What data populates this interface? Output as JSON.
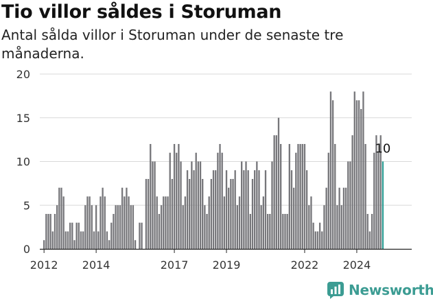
{
  "header": {
    "title": "Tio villor såldes i Storuman",
    "subtitle": "Antal sålda villor i Storuman under de senaste tre månaderna."
  },
  "brand": {
    "name": "Newsworthy",
    "color": "#3c9c93"
  },
  "chart_data": {
    "type": "bar",
    "title": "Tio villor såldes i Storuman",
    "subtitle": "Antal sålda villor i Storuman under de senaste tre månaderna.",
    "xlabel": "",
    "ylabel": "",
    "ylim": [
      0,
      20
    ],
    "yticks": [
      0,
      5,
      10,
      15,
      20
    ],
    "grid": true,
    "legend": "none",
    "bar_color": "#76767a",
    "highlight_color": "#2c9c93",
    "highlight_label": "10",
    "x_start": "2011-12",
    "x_ticks": [
      {
        "label": "2012",
        "index": 1
      },
      {
        "label": "2014",
        "index": 25
      },
      {
        "label": "2017",
        "index": 61
      },
      {
        "label": "2019",
        "index": 85
      },
      {
        "label": "2022",
        "index": 121
      },
      {
        "label": "2024",
        "index": 145
      }
    ],
    "values": [
      0,
      1,
      4,
      4,
      4,
      2,
      4,
      5,
      7,
      7,
      6,
      2,
      2,
      3,
      3,
      1,
      3,
      3,
      2,
      2,
      5,
      6,
      6,
      5,
      2,
      5,
      2,
      6,
      7,
      6,
      2,
      1,
      3,
      4,
      5,
      5,
      5,
      7,
      6,
      7,
      6,
      5,
      5,
      1,
      0,
      3,
      3,
      0,
      8,
      8,
      12,
      10,
      10,
      6,
      4,
      5,
      6,
      6,
      6,
      11,
      8,
      12,
      11,
      12,
      10,
      5,
      6,
      9,
      8,
      10,
      9,
      11,
      10,
      10,
      8,
      5,
      4,
      6,
      8,
      9,
      9,
      11,
      12,
      11,
      6,
      9,
      7,
      8,
      8,
      9,
      5,
      6,
      10,
      9,
      10,
      9,
      4,
      8,
      9,
      10,
      9,
      5,
      6,
      9,
      4,
      4,
      10,
      13,
      13,
      15,
      12,
      4,
      4,
      4,
      12,
      9,
      7,
      11,
      12,
      12,
      12,
      12,
      9,
      5,
      6,
      3,
      2,
      2,
      3,
      2,
      5,
      7,
      11,
      18,
      17,
      12,
      5,
      7,
      5,
      7,
      7,
      10,
      10,
      13,
      18,
      17,
      17,
      16,
      18,
      12,
      4,
      2,
      4,
      11,
      13,
      11,
      13,
      10
    ],
    "_values_note_": "",
    "last_value": 10
  }
}
